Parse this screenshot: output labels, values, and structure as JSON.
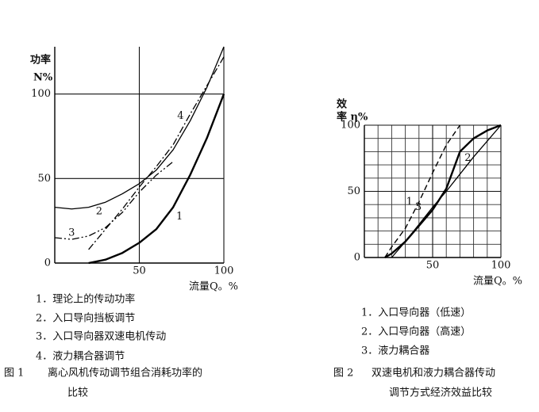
{
  "chart_data": [
    {
      "type": "line",
      "y_label": [
        "功率",
        "N%"
      ],
      "x_label": "流量Q。%",
      "x": [
        0,
        10,
        20,
        30,
        40,
        50,
        60,
        70,
        80,
        90,
        100
      ],
      "series": [
        {
          "name": "1",
          "color": "#000",
          "style": "solid-thick",
          "values": [
            null,
            null,
            0,
            2,
            6,
            12,
            20,
            33,
            52,
            74,
            100
          ]
        },
        {
          "name": "2",
          "color": "#000",
          "style": "solid",
          "values": [
            33,
            32,
            33,
            36,
            41,
            47,
            55,
            67,
            84,
            104,
            128
          ]
        },
        {
          "name": "3",
          "color": "#000",
          "style": "dash-dot-dot",
          "values": [
            15,
            14,
            16,
            21,
            30,
            42,
            52,
            60,
            null,
            null,
            null
          ]
        },
        {
          "name": "4",
          "color": "#000",
          "style": "dash-dot",
          "values": [
            null,
            null,
            8,
            20,
            32,
            45,
            57,
            70,
            88,
            105,
            122
          ]
        }
      ],
      "xlim": [
        0,
        100
      ],
      "ylim": [
        0,
        128
      ],
      "xticks": [
        50,
        100
      ],
      "yticks": [
        0,
        50,
        100
      ],
      "grid": true,
      "legend": [
        "1．理论上的传动功率",
        "2．入口导向挡板调节",
        "3．入口导向器双速电机传动",
        "4．液力耦合器调节"
      ],
      "figure_label": "图 1",
      "caption": [
        "离心风机传动调节组合消耗功率的",
        "比较"
      ]
    },
    {
      "type": "line",
      "y_label": [
        "效",
        "率 η%"
      ],
      "x_label": "流量Q。%",
      "x": [
        15,
        20,
        30,
        40,
        50,
        60,
        70,
        80,
        90,
        100
      ],
      "series": [
        {
          "name": "1",
          "color": "#000",
          "style": "dashed",
          "values": [
            0,
            8,
            22,
            42,
            64,
            85,
            100,
            null,
            null,
            null
          ]
        },
        {
          "name": "2",
          "color": "#000",
          "style": "solid-thick",
          "values": [
            0,
            3,
            12,
            24,
            36,
            52,
            80,
            90,
            96,
            100
          ]
        },
        {
          "name": "3",
          "color": "#000",
          "style": "solid",
          "values": [
            null,
            0,
            12,
            25,
            38,
            50,
            63,
            76,
            88,
            100
          ]
        }
      ],
      "xlim": [
        0,
        100
      ],
      "ylim": [
        0,
        100
      ],
      "xticks": [
        50,
        100
      ],
      "yticks": [
        0,
        50,
        100
      ],
      "grid": true,
      "grid_x": [
        10,
        20,
        30,
        40,
        50,
        60,
        70,
        80,
        90,
        100
      ],
      "grid_y": [
        10,
        20,
        30,
        40,
        50,
        60,
        70,
        80,
        90,
        100
      ],
      "legend": [
        "1．入口导向器（低速）",
        "2．入口导向器（高速）",
        "3．液力耦合器"
      ],
      "figure_label": "图 2",
      "caption": [
        "双速电机和液力耦合器传动",
        "调节方式经济效益比较"
      ]
    }
  ]
}
